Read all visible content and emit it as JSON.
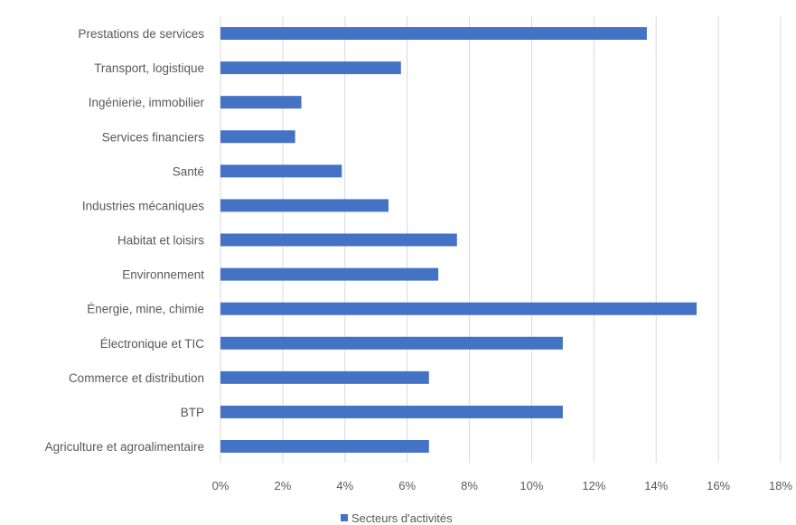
{
  "chart_data": {
    "type": "bar",
    "orientation": "horizontal",
    "categories": [
      "Prestations de services",
      "Transport, logistique",
      "Ingénierie, immobilier",
      "Services financiers",
      "Santé",
      "Industries mécaniques",
      "Habitat et loisirs",
      "Environnement",
      "Énergie, mine, chimie",
      "Électronique et TIC",
      "Commerce et distribution",
      "BTP",
      "Agriculture et agroalimentaire"
    ],
    "series": [
      {
        "name": "Secteurs d'activités",
        "color": "#4472C4",
        "values": [
          13.7,
          5.8,
          2.6,
          2.4,
          3.9,
          5.4,
          7.6,
          7.0,
          15.3,
          11.0,
          6.7,
          11.0,
          6.7
        ]
      }
    ],
    "xlim": [
      0,
      18
    ],
    "x_ticks": [
      "0%",
      "2%",
      "4%",
      "6%",
      "8%",
      "10%",
      "12%",
      "14%",
      "16%",
      "18%"
    ],
    "x_tick_values": [
      0,
      2,
      4,
      6,
      8,
      10,
      12,
      14,
      16,
      18
    ],
    "grid": "vertical",
    "legend_position": "bottom",
    "title": "",
    "xlabel": "",
    "ylabel": ""
  }
}
